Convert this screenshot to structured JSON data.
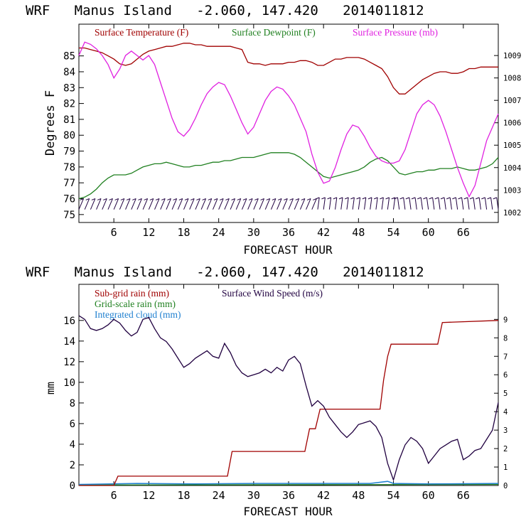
{
  "chart_data": [
    {
      "type": "line",
      "title": "WRF   Manus Island   -2.060, 147.420   2014011812",
      "xlabel": "FORECAST HOUR",
      "ylabel": "Degrees F",
      "xlim": [
        0,
        72
      ],
      "ylim": [
        74.5,
        87
      ],
      "y2lim": [
        1001.55,
        1010.4
      ],
      "x_ticks": [
        6,
        12,
        18,
        24,
        30,
        36,
        42,
        48,
        54,
        60,
        66
      ],
      "y_ticks": [
        75,
        76,
        77,
        78,
        79,
        80,
        81,
        82,
        83,
        84,
        85
      ],
      "y2_ticks": [
        1002,
        1003,
        1004,
        1005,
        1006,
        1007,
        1008,
        1009
      ],
      "legend_placement": "top",
      "series": [
        {
          "name": "Surface Temperature (F)",
          "color": "#a00000",
          "axis": "left",
          "x": [
            0,
            1,
            2,
            3,
            4,
            5,
            6,
            7,
            8,
            9,
            10,
            11,
            12,
            13,
            14,
            15,
            16,
            17,
            18,
            19,
            20,
            21,
            22,
            23,
            24,
            25,
            26,
            27,
            28,
            29,
            30,
            31,
            32,
            33,
            34,
            35,
            36,
            37,
            38,
            39,
            40,
            41,
            42,
            43,
            44,
            45,
            46,
            47,
            48,
            49,
            50,
            51,
            52,
            53,
            54,
            55,
            56,
            57,
            58,
            59,
            60,
            61,
            62,
            63,
            64,
            65,
            66,
            67,
            68,
            69,
            70,
            71,
            72
          ],
          "values": [
            85.5,
            85.5,
            85.4,
            85.3,
            85.2,
            85.0,
            84.8,
            84.5,
            84.4,
            84.5,
            84.8,
            85.1,
            85.3,
            85.4,
            85.5,
            85.6,
            85.6,
            85.7,
            85.8,
            85.8,
            85.7,
            85.7,
            85.6,
            85.6,
            85.6,
            85.6,
            85.6,
            85.5,
            85.4,
            84.6,
            84.5,
            84.5,
            84.4,
            84.5,
            84.5,
            84.5,
            84.6,
            84.6,
            84.7,
            84.7,
            84.6,
            84.4,
            84.4,
            84.6,
            84.8,
            84.8,
            84.9,
            84.9,
            84.9,
            84.8,
            84.6,
            84.4,
            84.2,
            83.7,
            83.0,
            82.6,
            82.6,
            82.9,
            83.2,
            83.5,
            83.7,
            83.9,
            84.0,
            84.0,
            83.9,
            83.9,
            84.0,
            84.2,
            84.2,
            84.3,
            84.3,
            84.3,
            84.3
          ]
        },
        {
          "name": "Surface Dewpoint (F)",
          "color": "#208020",
          "axis": "left",
          "x": [
            0,
            1,
            2,
            3,
            4,
            5,
            6,
            7,
            8,
            9,
            10,
            11,
            12,
            13,
            14,
            15,
            16,
            17,
            18,
            19,
            20,
            21,
            22,
            23,
            24,
            25,
            26,
            27,
            28,
            29,
            30,
            31,
            32,
            33,
            34,
            35,
            36,
            37,
            38,
            39,
            40,
            41,
            42,
            43,
            44,
            45,
            46,
            47,
            48,
            49,
            50,
            51,
            52,
            53,
            54,
            55,
            56,
            57,
            58,
            59,
            60,
            61,
            62,
            63,
            64,
            65,
            66,
            67,
            68,
            69,
            70,
            71,
            72
          ],
          "values": [
            76.0,
            76.1,
            76.3,
            76.6,
            77.0,
            77.3,
            77.5,
            77.5,
            77.5,
            77.6,
            77.8,
            78.0,
            78.1,
            78.2,
            78.2,
            78.3,
            78.2,
            78.1,
            78.0,
            78.0,
            78.1,
            78.1,
            78.2,
            78.3,
            78.3,
            78.4,
            78.4,
            78.5,
            78.6,
            78.6,
            78.6,
            78.7,
            78.8,
            78.9,
            78.9,
            78.9,
            78.9,
            78.8,
            78.6,
            78.3,
            78.0,
            77.7,
            77.4,
            77.3,
            77.4,
            77.5,
            77.6,
            77.7,
            77.8,
            78.0,
            78.3,
            78.5,
            78.6,
            78.4,
            78.0,
            77.6,
            77.5,
            77.6,
            77.7,
            77.7,
            77.8,
            77.8,
            77.9,
            77.9,
            77.9,
            78.0,
            77.9,
            77.8,
            77.8,
            77.9,
            78.0,
            78.2,
            78.6
          ]
        },
        {
          "name": "Surface Pressure (mb)",
          "color": "#e020e0",
          "axis": "right",
          "x": [
            0,
            1,
            2,
            3,
            4,
            5,
            6,
            7,
            8,
            9,
            10,
            11,
            12,
            13,
            14,
            15,
            16,
            17,
            18,
            19,
            20,
            21,
            22,
            23,
            24,
            25,
            26,
            27,
            28,
            29,
            30,
            31,
            32,
            33,
            34,
            35,
            36,
            37,
            38,
            39,
            40,
            41,
            42,
            43,
            44,
            45,
            46,
            47,
            48,
            49,
            50,
            51,
            52,
            53,
            54,
            55,
            56,
            57,
            58,
            59,
            60,
            61,
            62,
            63,
            64,
            65,
            66,
            67,
            68,
            69,
            70,
            71,
            72
          ],
          "values": [
            1009.0,
            1009.6,
            1009.5,
            1009.3,
            1009.0,
            1008.6,
            1008.0,
            1008.4,
            1009.0,
            1009.2,
            1009.0,
            1008.8,
            1009.0,
            1008.6,
            1007.8,
            1007.0,
            1006.2,
            1005.6,
            1005.4,
            1005.7,
            1006.2,
            1006.8,
            1007.3,
            1007.6,
            1007.8,
            1007.7,
            1007.2,
            1006.6,
            1006.0,
            1005.5,
            1005.8,
            1006.4,
            1007.0,
            1007.4,
            1007.6,
            1007.5,
            1007.2,
            1006.8,
            1006.2,
            1005.6,
            1004.6,
            1003.8,
            1003.3,
            1003.4,
            1004.0,
            1004.8,
            1005.5,
            1005.9,
            1005.8,
            1005.4,
            1004.9,
            1004.5,
            1004.3,
            1004.2,
            1004.2,
            1004.3,
            1004.8,
            1005.6,
            1006.4,
            1006.8,
            1007.0,
            1006.8,
            1006.3,
            1005.6,
            1004.8,
            1004.0,
            1003.3,
            1002.7,
            1003.2,
            1004.2,
            1005.2,
            1005.8,
            1006.4
          ]
        }
      ],
      "wind_barbs": {
        "description": "wind barbs drawn along the bottom of the top panel (near 75.5 F)",
        "x": [
          0,
          1,
          2,
          3,
          4,
          5,
          6,
          7,
          8,
          9,
          10,
          11,
          12,
          13,
          14,
          15,
          16,
          17,
          18,
          19,
          20,
          21,
          22,
          23,
          24,
          25,
          26,
          27,
          28,
          29,
          30,
          31,
          32,
          33,
          34,
          35,
          36,
          37,
          38,
          39,
          40,
          41,
          42,
          43,
          44,
          45,
          46,
          47,
          48,
          49,
          50,
          51,
          52,
          53,
          54,
          55,
          56,
          57,
          58,
          59,
          60,
          61,
          62,
          63,
          64,
          65,
          66,
          67,
          68,
          69,
          70,
          71,
          72
        ]
      }
    },
    {
      "type": "line",
      "title": "WRF   Manus Island   -2.060, 147.420   2014011812",
      "xlabel": "FORECAST HOUR",
      "ylabel": "mm",
      "xlim": [
        0,
        72
      ],
      "ylim": [
        0,
        19.5
      ],
      "y2lim": [
        0,
        10.9
      ],
      "x_ticks": [
        6,
        12,
        18,
        24,
        30,
        36,
        42,
        48,
        54,
        60,
        66
      ],
      "y_ticks": [
        0,
        2,
        4,
        6,
        8,
        10,
        12,
        14,
        16
      ],
      "y2_ticks": [
        0,
        1,
        2,
        3,
        4,
        5,
        6,
        7,
        8,
        9
      ],
      "legend_placement": "top-left",
      "series": [
        {
          "name": "Sub-grid rain (mm)",
          "color": "#a00000",
          "axis": "left",
          "x": [
            0,
            6,
            6.7,
            25.5,
            26.3,
            38.8,
            39.6,
            40.6,
            41.4,
            51.7,
            52.3,
            53.0,
            53.6,
            61.6,
            62.4,
            72
          ],
          "values": [
            0,
            0,
            0.9,
            0.9,
            3.3,
            3.3,
            5.5,
            5.5,
            7.4,
            7.4,
            10.2,
            12.5,
            13.7,
            13.7,
            15.8,
            16.0
          ]
        },
        {
          "name": "Grid-scale rain (mm)",
          "color": "#208020",
          "axis": "left",
          "x": [
            0,
            72
          ],
          "values": [
            0.05,
            0.1
          ]
        },
        {
          "name": "Integrated cloud (mm)",
          "color": "#2080d0",
          "axis": "left",
          "x": [
            0,
            10,
            20,
            30,
            40,
            50,
            53,
            54,
            60,
            72
          ],
          "values": [
            0.1,
            0.2,
            0.15,
            0.2,
            0.2,
            0.2,
            0.4,
            0.2,
            0.15,
            0.2
          ]
        },
        {
          "name": "Surface Wind Speed (m/s)",
          "color": "#200040",
          "axis": "right",
          "x": [
            0,
            1,
            2,
            3,
            4,
            5,
            6,
            7,
            8,
            9,
            10,
            11,
            12,
            13,
            14,
            15,
            16,
            17,
            18,
            19,
            20,
            21,
            22,
            23,
            24,
            25,
            26,
            27,
            28,
            29,
            30,
            31,
            32,
            33,
            34,
            35,
            36,
            37,
            38,
            39,
            40,
            41,
            42,
            43,
            44,
            45,
            46,
            47,
            48,
            49,
            50,
            51,
            52,
            53,
            54,
            55,
            56,
            57,
            58,
            59,
            60,
            61,
            62,
            63,
            64,
            65,
            66,
            67,
            68,
            69,
            70,
            71,
            72
          ],
          "values": [
            9.2,
            9.0,
            8.5,
            8.4,
            8.5,
            8.7,
            9.0,
            8.8,
            8.4,
            8.1,
            8.3,
            9.0,
            9.1,
            8.5,
            8.0,
            7.8,
            7.4,
            6.9,
            6.4,
            6.6,
            6.9,
            7.1,
            7.3,
            7.0,
            6.9,
            7.7,
            7.2,
            6.5,
            6.1,
            5.9,
            6.0,
            6.1,
            6.3,
            6.1,
            6.4,
            6.2,
            6.8,
            7.0,
            6.6,
            5.4,
            4.3,
            4.6,
            4.3,
            3.7,
            3.3,
            2.9,
            2.6,
            2.9,
            3.3,
            3.4,
            3.5,
            3.2,
            2.6,
            1.2,
            0.3,
            1.4,
            2.2,
            2.6,
            2.4,
            2.0,
            1.2,
            1.6,
            2.0,
            2.2,
            2.4,
            2.5,
            1.4,
            1.6,
            1.9,
            2.0,
            2.5,
            3.0,
            4.5
          ]
        }
      ]
    }
  ]
}
